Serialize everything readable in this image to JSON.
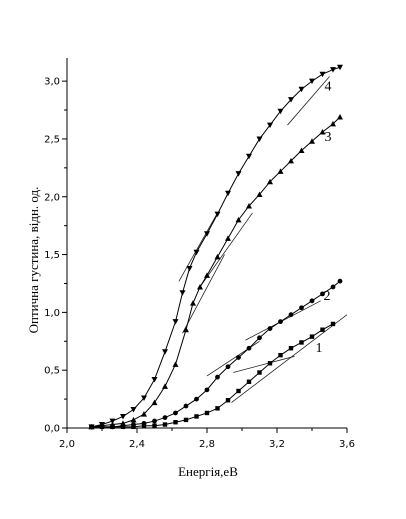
{
  "chart_data": {
    "type": "line",
    "xlabel": "Енергія,еВ",
    "ylabel": "Оптична густина, відн. од.",
    "xlim": [
      2.0,
      3.6
    ],
    "ylim": [
      0.0,
      3.2
    ],
    "x_ticks": [
      "2,0",
      "2,4",
      "2,8",
      "3,2",
      "3,6"
    ],
    "y_ticks": [
      "0,0",
      "0,5",
      "1,0",
      "1,5",
      "2,0",
      "2,5",
      "3,0"
    ],
    "x_tick_values": [
      2.0,
      2.4,
      2.8,
      3.2,
      3.6
    ],
    "y_tick_values": [
      0.0,
      0.5,
      1.0,
      1.5,
      2.0,
      2.5,
      3.0
    ],
    "grid": false,
    "series": [
      {
        "name": "1",
        "marker": "square",
        "x": [
          2.14,
          2.2,
          2.26,
          2.32,
          2.38,
          2.44,
          2.5,
          2.56,
          2.62,
          2.68,
          2.74,
          2.8,
          2.86,
          2.92,
          2.98,
          3.04,
          3.1,
          3.16,
          3.22,
          3.28,
          3.34,
          3.4,
          3.46,
          3.52
        ],
        "y": [
          0.01,
          0.01,
          0.01,
          0.01,
          0.01,
          0.02,
          0.02,
          0.03,
          0.05,
          0.07,
          0.1,
          0.13,
          0.17,
          0.24,
          0.32,
          0.4,
          0.48,
          0.56,
          0.63,
          0.69,
          0.74,
          0.79,
          0.85,
          0.9
        ]
      },
      {
        "name": "2",
        "marker": "circle",
        "x": [
          2.14,
          2.2,
          2.26,
          2.32,
          2.38,
          2.44,
          2.5,
          2.56,
          2.62,
          2.68,
          2.74,
          2.8,
          2.86,
          2.92,
          2.98,
          3.04,
          3.1,
          3.16,
          3.22,
          3.28,
          3.34,
          3.4,
          3.46,
          3.52,
          3.56
        ],
        "y": [
          0.01,
          0.01,
          0.01,
          0.02,
          0.03,
          0.04,
          0.06,
          0.09,
          0.13,
          0.19,
          0.25,
          0.33,
          0.44,
          0.53,
          0.61,
          0.69,
          0.78,
          0.86,
          0.92,
          0.98,
          1.04,
          1.1,
          1.16,
          1.22,
          1.27
        ]
      },
      {
        "name": "3",
        "marker": "triangle-up",
        "x": [
          2.14,
          2.2,
          2.26,
          2.32,
          2.38,
          2.44,
          2.5,
          2.56,
          2.62,
          2.68,
          2.72,
          2.76,
          2.8,
          2.86,
          2.92,
          2.98,
          3.04,
          3.1,
          3.16,
          3.22,
          3.28,
          3.34,
          3.4,
          3.46,
          3.52,
          3.56
        ],
        "y": [
          0.01,
          0.02,
          0.03,
          0.04,
          0.07,
          0.12,
          0.22,
          0.36,
          0.55,
          0.85,
          1.08,
          1.22,
          1.32,
          1.48,
          1.64,
          1.8,
          1.92,
          2.02,
          2.13,
          2.22,
          2.31,
          2.4,
          2.48,
          2.56,
          2.63,
          2.69
        ]
      },
      {
        "name": "4",
        "marker": "triangle-down",
        "x": [
          2.14,
          2.2,
          2.26,
          2.32,
          2.38,
          2.44,
          2.5,
          2.56,
          2.62,
          2.66,
          2.7,
          2.74,
          2.8,
          2.86,
          2.92,
          2.98,
          3.04,
          3.1,
          3.16,
          3.22,
          3.28,
          3.34,
          3.4,
          3.46,
          3.52,
          3.56
        ],
        "y": [
          0.01,
          0.03,
          0.06,
          0.1,
          0.16,
          0.26,
          0.42,
          0.66,
          0.92,
          1.17,
          1.38,
          1.52,
          1.68,
          1.85,
          2.03,
          2.2,
          2.35,
          2.5,
          2.62,
          2.74,
          2.84,
          2.93,
          3.0,
          3.06,
          3.1,
          3.12
        ]
      }
    ],
    "fit_lines": [
      {
        "series": "1",
        "x": [
          2.94,
          3.6
        ],
        "y": [
          0.22,
          0.98
        ]
      },
      {
        "series": "1",
        "x": [
          2.95,
          3.3
        ],
        "y": [
          0.48,
          0.62
        ]
      },
      {
        "series": "2",
        "x": [
          2.8,
          3.1
        ],
        "y": [
          0.45,
          0.75
        ]
      },
      {
        "series": "2",
        "x": [
          3.02,
          3.45
        ],
        "y": [
          0.76,
          1.1
        ]
      },
      {
        "series": "3",
        "x": [
          2.66,
          2.9
        ],
        "y": [
          0.82,
          1.5
        ]
      },
      {
        "series": "3",
        "x": [
          2.76,
          3.06
        ],
        "y": [
          1.22,
          1.86
        ]
      },
      {
        "series": "4",
        "x": [
          2.64,
          2.86
        ],
        "y": [
          1.27,
          1.86
        ]
      },
      {
        "series": "4",
        "x": [
          3.26,
          3.5
        ],
        "y": [
          2.62,
          3.04
        ]
      }
    ]
  }
}
